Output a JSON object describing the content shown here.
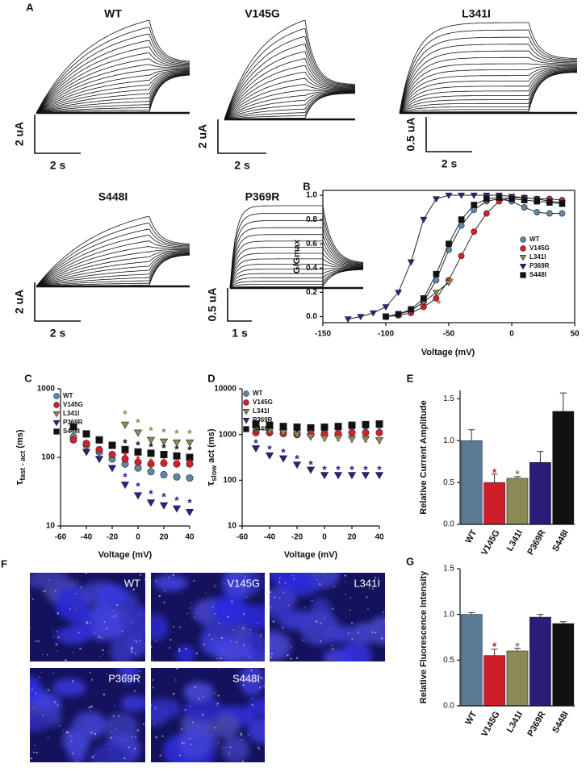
{
  "panel_labels": [
    "A",
    "B",
    "C",
    "D",
    "E",
    "F",
    "G"
  ],
  "traces": [
    {
      "title": "WT",
      "current_scale": "2 uA",
      "time_scale": "2 s"
    },
    {
      "title": "V145G",
      "current_scale": "2 uA",
      "time_scale": "2 s"
    },
    {
      "title": "L341I",
      "current_scale": "0.5 uA",
      "time_scale": "2 s"
    },
    {
      "title": "S448I",
      "current_scale": "2 uA",
      "time_scale": "2 s"
    },
    {
      "title": "P369R",
      "current_scale": "0.5 uA",
      "time_scale": "1 s"
    }
  ],
  "images": [
    {
      "label": "WT"
    },
    {
      "label": "V145G"
    },
    {
      "label": "L341I"
    },
    {
      "label": "P369R"
    },
    {
      "label": "S448I"
    }
  ],
  "chart_data": [
    {
      "type": "line",
      "xlabel": "Voltage (mV)",
      "ylabel": "G/Gmax",
      "xlim": [
        -150,
        50
      ],
      "xticks": [
        -150,
        -100,
        -50,
        0,
        50
      ],
      "ylim": [
        -0.05,
        1.04
      ],
      "yticks": [
        {
          "value": 0,
          "label": "0.0"
        },
        0.2,
        0.4,
        0.6,
        0.8,
        {
          "value": 1,
          "label": "1.0"
        }
      ],
      "legend": "center right",
      "series": [
        {
          "name": "WT",
          "color": "#5f87a8",
          "marker": "circle",
          "x": [
            -100,
            -90,
            -80,
            -70,
            -60,
            -50,
            -40,
            -30,
            -20,
            -10,
            0,
            10,
            20,
            30,
            40
          ],
          "values": [
            0,
            0.02,
            0.05,
            0.12,
            0.3,
            0.55,
            0.75,
            0.88,
            0.95,
            0.97,
            0.95,
            0.9,
            0.86,
            0.85,
            0.85
          ]
        },
        {
          "name": "V145G",
          "color": "#d4202a",
          "marker": "circle",
          "x": [
            -100,
            -90,
            -80,
            -70,
            -60,
            -50,
            -40,
            -30,
            -20,
            -10,
            0,
            10,
            20,
            30,
            40
          ],
          "values": [
            0,
            0.01,
            0.03,
            0.08,
            0.15,
            0.3,
            0.5,
            0.7,
            0.85,
            0.95,
            0.98,
            0.98,
            0.97,
            0.97,
            0.96
          ]
        },
        {
          "name": "L341I",
          "color": "#8c8a55",
          "marker": "triangle-down",
          "x": [
            -100,
            -90,
            -80,
            -70,
            -60,
            -50
          ],
          "values": [
            0,
            0.02,
            0.05,
            0.12,
            0.2,
            0.28
          ]
        },
        {
          "name": "P369R",
          "color": "#2a1f8f",
          "marker": "triangle-down",
          "x": [
            -130,
            -120,
            -110,
            -100,
            -90,
            -80,
            -70,
            -60,
            -50,
            -40,
            -30,
            -20,
            -10,
            0,
            10,
            20,
            30,
            40
          ],
          "values": [
            -0.02,
            0,
            0.03,
            0.08,
            0.2,
            0.45,
            0.8,
            0.97,
            1,
            1,
            1,
            1,
            1,
            0.99,
            0.98,
            0.97,
            0.95,
            0.94
          ]
        },
        {
          "name": "S448I",
          "color": "#111111",
          "marker": "square",
          "x": [
            -100,
            -90,
            -80,
            -70,
            -60,
            -50,
            -40,
            -30,
            -20,
            -10,
            0,
            10,
            20,
            30,
            40
          ],
          "values": [
            0,
            0.02,
            0.06,
            0.15,
            0.35,
            0.6,
            0.8,
            0.92,
            0.97,
            0.98,
            0.97,
            0.96,
            0.95,
            0.94,
            0.93
          ]
        }
      ],
      "annotations": [
        {
          "text": "*",
          "x": -58,
          "y": 0.12,
          "color": "#8c8a55"
        },
        {
          "text": "*",
          "x": -48,
          "y": 0.3,
          "color": "#8c8a55"
        }
      ]
    },
    {
      "type": "scatter",
      "xlabel": "Voltage (mV)",
      "ylabel": {
        "symbol": "τ",
        "sub": "fast - act",
        "unit": "(ms)"
      },
      "log": true,
      "xlim": [
        -60,
        40
      ],
      "xticks": [
        -60,
        -40,
        -20,
        0,
        20,
        40
      ],
      "ylim": [
        10,
        1000
      ],
      "yticks": [
        10,
        100,
        1000
      ],
      "legend": "upper left",
      "x": [
        -50,
        -40,
        -30,
        -20,
        -10,
        0,
        10,
        20,
        30,
        40
      ],
      "series": [
        {
          "name": "WT",
          "color": "#5f87a8",
          "marker": "circle",
          "values": [
            200,
            150,
            120,
            95,
            80,
            70,
            62,
            56,
            52,
            50
          ]
        },
        {
          "name": "V145G",
          "color": "#d4202a",
          "marker": "circle",
          "values": [
            180,
            160,
            130,
            110,
            95,
            85,
            80,
            82,
            80,
            80
          ]
        },
        {
          "name": "L341I",
          "color": "#8c8a55",
          "marker": "triangle-down",
          "values": [
            null,
            null,
            null,
            null,
            300,
            230,
            180,
            170,
            165,
            165
          ]
        },
        {
          "name": "P369R",
          "color": "#2a1f8f",
          "marker": "triangle-down",
          "values": [
            null,
            120,
            95,
            70,
            40,
            28,
            22,
            20,
            18,
            16
          ]
        },
        {
          "name": "S448I",
          "color": "#111111",
          "marker": "square",
          "values": [
            280,
            220,
            180,
            150,
            130,
            120,
            115,
            110,
            105,
            100
          ]
        }
      ],
      "annotations": [
        {
          "text": "*",
          "x": -10,
          "y": 450,
          "color": "#8c8a55"
        },
        {
          "text": "*",
          "x": 0,
          "y": 340,
          "color": "#8c8a55"
        },
        {
          "text": "*",
          "x": 10,
          "y": 260,
          "color": "#8c8a55"
        },
        {
          "text": "*",
          "x": 20,
          "y": 245,
          "color": "#8c8a55"
        },
        {
          "text": "*",
          "x": 30,
          "y": 235,
          "color": "#8c8a55"
        },
        {
          "text": "*",
          "x": 40,
          "y": 235,
          "color": "#8c8a55"
        },
        {
          "text": "*",
          "x": -10,
          "y": 170,
          "color": "#111111"
        },
        {
          "text": "*",
          "x": 0,
          "y": 160,
          "color": "#111111"
        },
        {
          "text": "*",
          "x": 10,
          "y": 150,
          "color": "#111111"
        },
        {
          "text": "*",
          "x": 20,
          "y": 145,
          "color": "#111111"
        },
        {
          "text": "*",
          "x": 30,
          "y": 140,
          "color": "#111111"
        },
        {
          "text": "*",
          "x": 40,
          "y": 135,
          "color": "#111111"
        },
        {
          "text": "*",
          "x": -10,
          "y": 110,
          "color": "#d4202a"
        },
        {
          "text": "*",
          "x": 0,
          "y": 98,
          "color": "#d4202a"
        },
        {
          "text": "*",
          "x": 10,
          "y": 90,
          "color": "#d4202a"
        },
        {
          "text": "*",
          "x": 20,
          "y": 90,
          "color": "#d4202a"
        },
        {
          "text": "*",
          "x": 30,
          "y": 88,
          "color": "#d4202a"
        },
        {
          "text": "*",
          "x": 40,
          "y": 88,
          "color": "#d4202a"
        },
        {
          "text": "*",
          "x": -10,
          "y": 55,
          "color": "#2a1f8f"
        },
        {
          "text": "*",
          "x": 0,
          "y": 40,
          "color": "#2a1f8f"
        },
        {
          "text": "*",
          "x": 10,
          "y": 31,
          "color": "#2a1f8f"
        },
        {
          "text": "*",
          "x": 20,
          "y": 28,
          "color": "#2a1f8f"
        },
        {
          "text": "*",
          "x": 30,
          "y": 25,
          "color": "#2a1f8f"
        },
        {
          "text": "*",
          "x": 40,
          "y": 23,
          "color": "#2a1f8f"
        }
      ]
    },
    {
      "type": "scatter",
      "xlabel": "Voltage (mV)",
      "ylabel": {
        "symbol": "τ",
        "sub": "slow",
        "unit": "act (ms)"
      },
      "log": true,
      "xlim": [
        -60,
        40
      ],
      "xticks": [
        -60,
        -40,
        -20,
        0,
        20,
        40
      ],
      "ylim": [
        10,
        10000
      ],
      "yticks": [
        10,
        100,
        1000,
        10000
      ],
      "legend": "upper left",
      "x": [
        -50,
        -40,
        -30,
        -20,
        -10,
        0,
        10,
        20,
        30,
        40
      ],
      "series": [
        {
          "name": "WT",
          "color": "#5f87a8",
          "marker": "circle",
          "values": [
            1600,
            1500,
            1450,
            1400,
            1350,
            1400,
            1450,
            1500,
            1550,
            1600
          ]
        },
        {
          "name": "V145G",
          "color": "#d4202a",
          "marker": "circle",
          "values": [
            1100,
            1100,
            1050,
            1000,
            1000,
            1050,
            1050,
            1100,
            1100,
            1100
          ]
        },
        {
          "name": "L341I",
          "color": "#8c8a55",
          "marker": "triangle-down",
          "values": [
            1300,
            1200,
            1100,
            1000,
            900,
            850,
            850,
            800,
            800,
            750
          ]
        },
        {
          "name": "P369R",
          "color": "#2a1f8f",
          "marker": "triangle-down",
          "values": [
            500,
            350,
            300,
            220,
            170,
            130,
            130,
            130,
            130,
            130
          ]
        },
        {
          "name": "S448I",
          "color": "#111111",
          "marker": "square",
          "values": [
            1700,
            1600,
            1500,
            1450,
            1400,
            1450,
            1500,
            1600,
            1650,
            1700
          ]
        }
      ],
      "annotations": [
        {
          "text": "*",
          "x": -50,
          "y": 700,
          "color": "#2a1f8f"
        },
        {
          "text": "*",
          "x": -40,
          "y": 520,
          "color": "#2a1f8f"
        },
        {
          "text": "*",
          "x": -30,
          "y": 440,
          "color": "#2a1f8f"
        },
        {
          "text": "*",
          "x": -20,
          "y": 320,
          "color": "#2a1f8f"
        },
        {
          "text": "*",
          "x": -10,
          "y": 240,
          "color": "#2a1f8f"
        },
        {
          "text": "*",
          "x": 0,
          "y": 185,
          "color": "#2a1f8f"
        },
        {
          "text": "*",
          "x": 10,
          "y": 185,
          "color": "#2a1f8f"
        },
        {
          "text": "*",
          "x": 20,
          "y": 185,
          "color": "#2a1f8f"
        },
        {
          "text": "*",
          "x": 30,
          "y": 185,
          "color": "#2a1f8f"
        },
        {
          "text": "*",
          "x": 40,
          "y": 185,
          "color": "#2a1f8f"
        },
        {
          "text": "*",
          "x": -10,
          "y": 1150,
          "color": "#d4202a"
        },
        {
          "text": "*",
          "x": 10,
          "y": 1150,
          "color": "#d4202a"
        },
        {
          "text": "*",
          "x": 20,
          "y": 1150,
          "color": "#d4202a"
        },
        {
          "text": "*",
          "x": 30,
          "y": 1150,
          "color": "#d4202a"
        },
        {
          "text": "*",
          "x": 0,
          "y": 780,
          "color": "#8c8a55"
        },
        {
          "text": "*",
          "x": 10,
          "y": 780,
          "color": "#8c8a55"
        },
        {
          "text": "*",
          "x": 20,
          "y": 750,
          "color": "#8c8a55"
        },
        {
          "text": "*",
          "x": 30,
          "y": 750,
          "color": "#8c8a55"
        },
        {
          "text": "*",
          "x": 40,
          "y": 700,
          "color": "#8c8a55"
        }
      ]
    },
    {
      "type": "bar",
      "ylabel": "Relative Current Amplitude",
      "categories": [
        "WT",
        "V145G",
        "L341I",
        "P369R",
        "S448I"
      ],
      "values": [
        1.0,
        0.5,
        0.55,
        0.74,
        1.35
      ],
      "errors": [
        0.13,
        0.1,
        0.02,
        0.13,
        0.22
      ],
      "colors": [
        "#5a7a96",
        "#cc1f2a",
        "#8b8a55",
        "#2a1d7a",
        "#111111"
      ],
      "ylim": [
        0,
        1.6
      ],
      "yticks": [
        {
          "value": 0,
          "label": "0.0"
        },
        0.5,
        {
          "value": 1,
          "label": "1.0"
        },
        1.5
      ],
      "annotations": [
        {
          "text": "*",
          "category": "V145G",
          "y": 0.64,
          "color": "#cc1f2a"
        },
        {
          "text": "*",
          "category": "L341I",
          "y": 0.62,
          "color": "#8b8a55"
        }
      ]
    },
    {
      "type": "bar",
      "ylabel": "Relative Fluorescence Intensity",
      "categories": [
        "WT",
        "V145G",
        "L341I",
        "P369R",
        "S448I"
      ],
      "values": [
        1.0,
        0.55,
        0.6,
        0.97,
        0.9
      ],
      "errors": [
        0.02,
        0.07,
        0.03,
        0.03,
        0.02
      ],
      "colors": [
        "#5a7a96",
        "#cc1f2a",
        "#8b8a55",
        "#2a1d7a",
        "#111111"
      ],
      "ylim": [
        0,
        1.5
      ],
      "yticks": [
        {
          "value": 0,
          "label": "0.0"
        },
        0.5,
        {
          "value": 1,
          "label": "1.0"
        },
        1.5
      ],
      "annotations": [
        {
          "text": "*",
          "category": "V145G",
          "y": 0.67,
          "color": "#cc1f2a"
        },
        {
          "text": "*",
          "category": "L341I",
          "y": 0.67,
          "color": "#8b8a55"
        }
      ]
    }
  ]
}
